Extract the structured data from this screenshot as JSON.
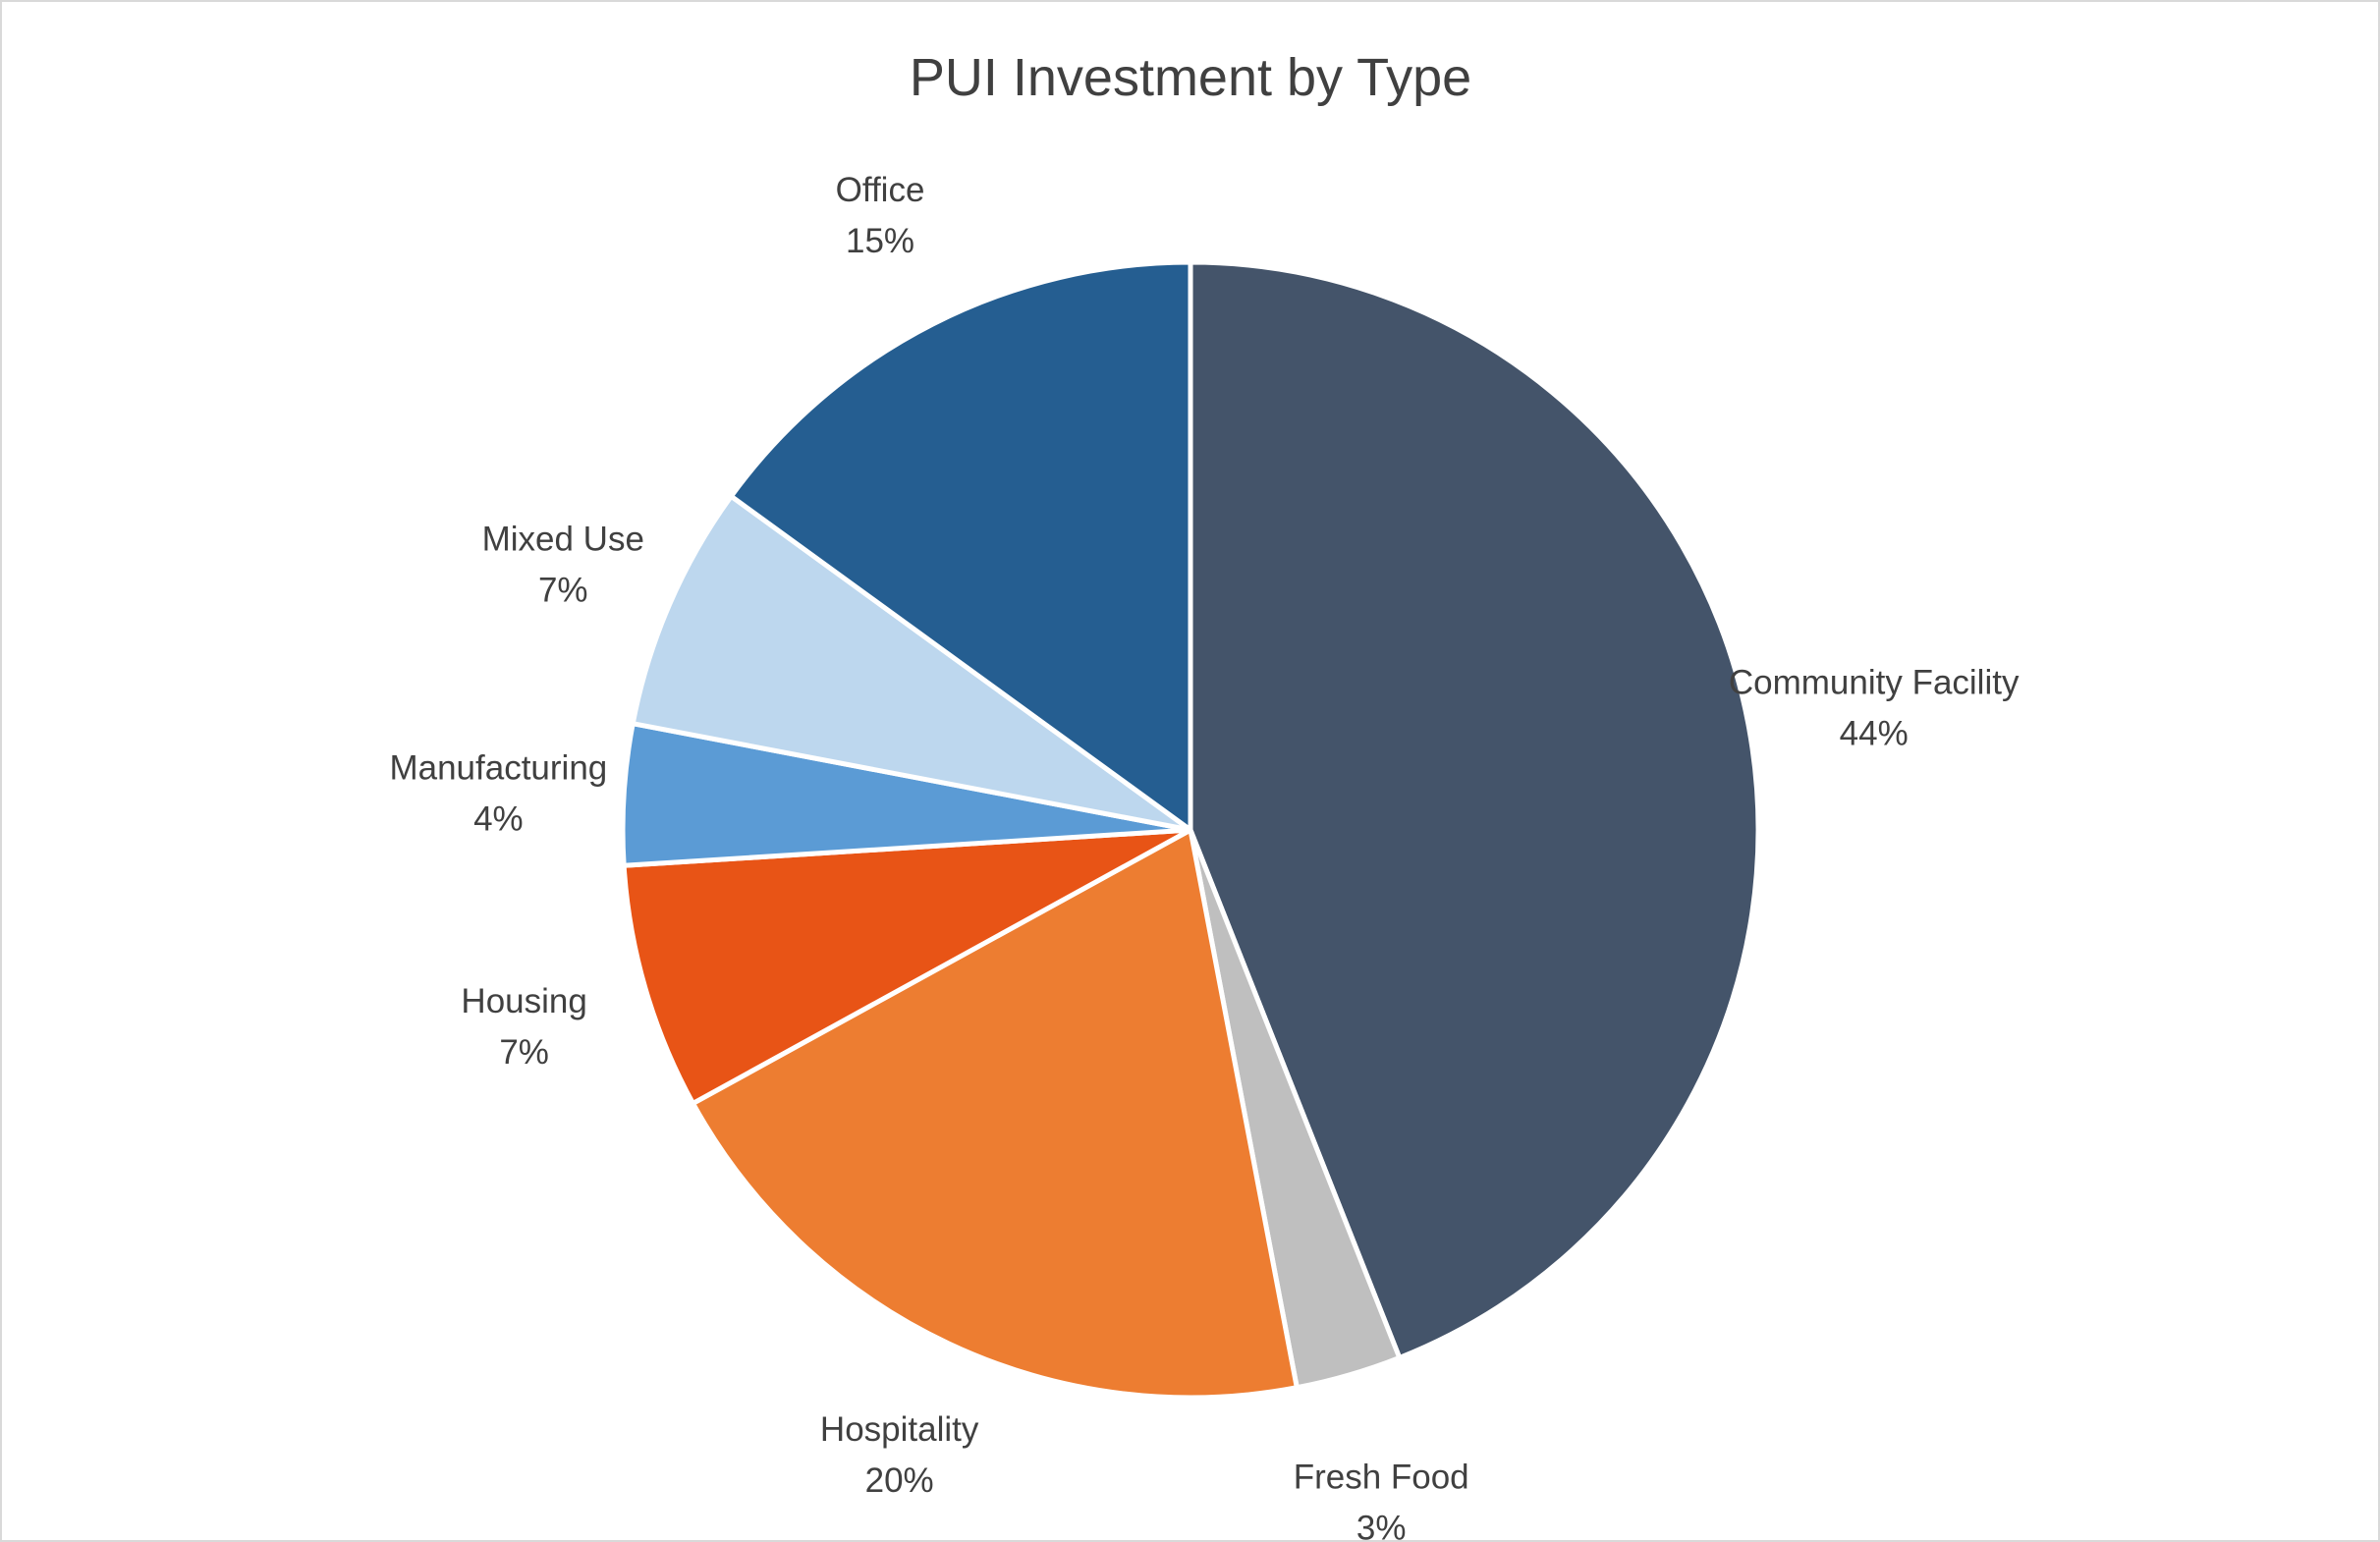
{
  "chart_data": {
    "type": "pie",
    "title": "PUI Investment by Type",
    "start_angle_deg": 0,
    "direction": "clockwise",
    "slices": [
      {
        "label": "Community Facility",
        "value": 44,
        "percent_label": "44%",
        "color": "#44546A"
      },
      {
        "label": "Fresh Food",
        "value": 3,
        "percent_label": "3%",
        "color": "#BFBFBF"
      },
      {
        "label": "Hospitality",
        "value": 20,
        "percent_label": "20%",
        "color": "#ED7D31"
      },
      {
        "label": "Housing",
        "value": 7,
        "percent_label": "7%",
        "color": "#E85416"
      },
      {
        "label": "Manufacturing",
        "value": 4,
        "percent_label": "4%",
        "color": "#5B9BD5"
      },
      {
        "label": "Mixed Use",
        "value": 7,
        "percent_label": "7%",
        "color": "#BDD7EE"
      },
      {
        "label": "Office",
        "value": 15,
        "percent_label": "15%",
        "color": "#255E91"
      }
    ],
    "legend": "none",
    "slice_border_color": "#FFFFFF"
  }
}
